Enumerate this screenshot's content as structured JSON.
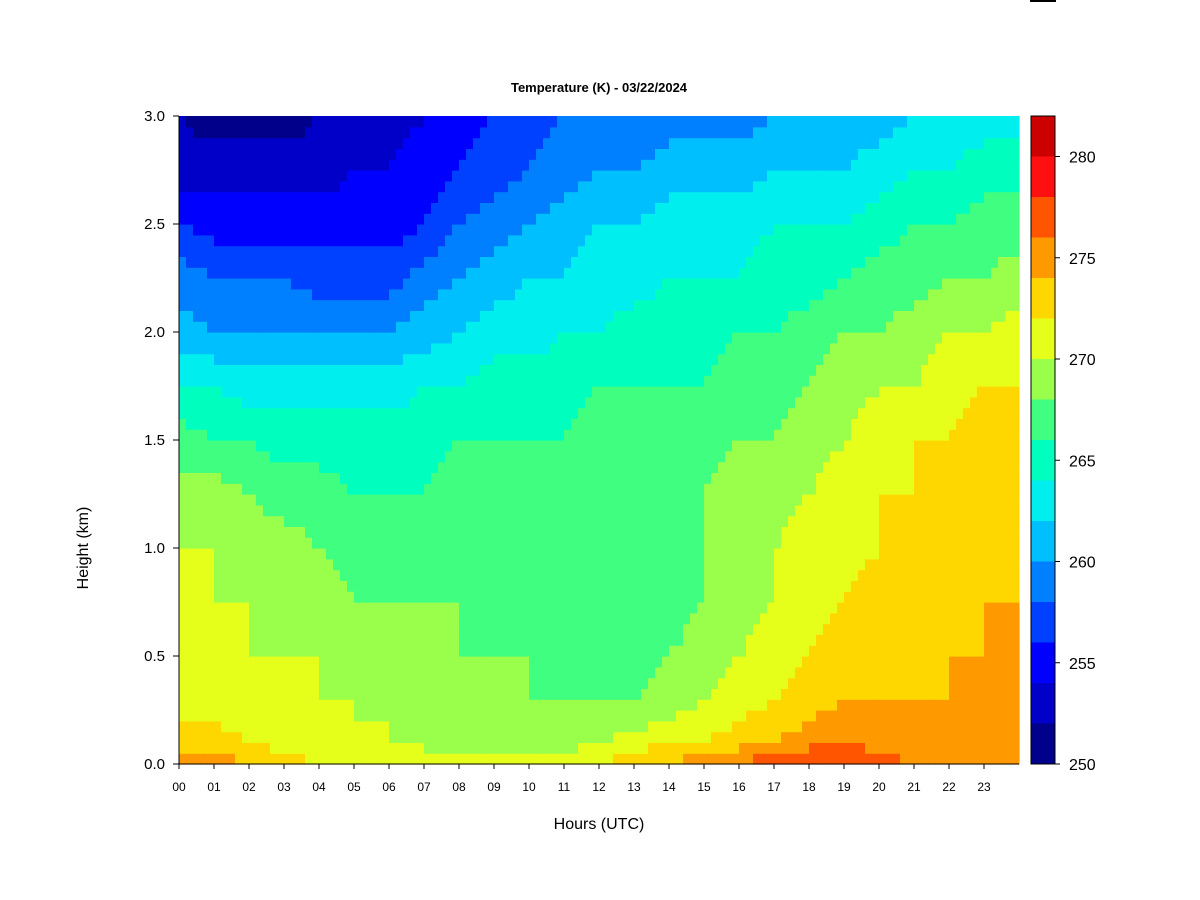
{
  "chart_data": {
    "type": "heatmap",
    "title": "Temperature (K) - 03/22/2024",
    "xlabel": "Hours (UTC)",
    "ylabel": "Height (km)",
    "x_ticks": [
      "00",
      "01",
      "02",
      "03",
      "04",
      "05",
      "06",
      "07",
      "08",
      "09",
      "10",
      "11",
      "12",
      "13",
      "14",
      "15",
      "16",
      "17",
      "18",
      "19",
      "20",
      "21",
      "22",
      "23"
    ],
    "y_ticks": [
      "0.0",
      "0.5",
      "1.0",
      "1.5",
      "2.0",
      "2.5",
      "3.0"
    ],
    "xlim": [
      0,
      24
    ],
    "ylim": [
      0.0,
      3.0
    ],
    "colorbar": {
      "ticks": [
        "250",
        "255",
        "260",
        "265",
        "270",
        "275",
        "280"
      ],
      "range": [
        250,
        282
      ],
      "levels": [
        250,
        252,
        254,
        256,
        258,
        260,
        262,
        264,
        266,
        268,
        270,
        272,
        274,
        276,
        278,
        280,
        282
      ],
      "colors": [
        "#00008B",
        "#0000C8",
        "#0000FF",
        "#0040FF",
        "#0080FF",
        "#00BFFF",
        "#00EEEE",
        "#00FFBF",
        "#40FF80",
        "#9AFF4A",
        "#E6FF1A",
        "#FFD700",
        "#FF9900",
        "#FF5500",
        "#FF1010",
        "#CC0000",
        "#8B0000"
      ]
    },
    "height_km": [
      0.0,
      0.05,
      0.1,
      0.2,
      0.3,
      0.5,
      0.75,
      1.0,
      1.25,
      1.5,
      1.75,
      2.0,
      2.25,
      2.5,
      2.75,
      3.0
    ],
    "hours": [
      0,
      1,
      2,
      3,
      4,
      5,
      6,
      7,
      8,
      9,
      10,
      11,
      12,
      13,
      14,
      15,
      16,
      17,
      18,
      19,
      20,
      21,
      22,
      23,
      24
    ],
    "values": [
      [
        275,
        275,
        274,
        273,
        272,
        271,
        271,
        271,
        270,
        270,
        270,
        271,
        272,
        273,
        274,
        275,
        276,
        277,
        278,
        278,
        277,
        276,
        275,
        275,
        275
      ],
      [
        274,
        274,
        273,
        272,
        271,
        271,
        270,
        270,
        270,
        270,
        270,
        270,
        271,
        272,
        273,
        274,
        275,
        276,
        277,
        277,
        276,
        275,
        275,
        275,
        275
      ],
      [
        273,
        273,
        272,
        271,
        271,
        270,
        270,
        270,
        269,
        269,
        269,
        269,
        270,
        271,
        272,
        272,
        273,
        274,
        275,
        276,
        275,
        274,
        274,
        275,
        275
      ],
      [
        272,
        272,
        271,
        271,
        270,
        270,
        270,
        269,
        269,
        269,
        269,
        268,
        269,
        269,
        270,
        271,
        272,
        273,
        274,
        275,
        274,
        274,
        274,
        274,
        275
      ],
      [
        272,
        271,
        271,
        270,
        270,
        270,
        269,
        269,
        269,
        268,
        268,
        268,
        268,
        268,
        269,
        270,
        271,
        272,
        273,
        274,
        274,
        274,
        274,
        274,
        275
      ],
      [
        271,
        271,
        270,
        270,
        270,
        269,
        269,
        269,
        268,
        268,
        268,
        267,
        267,
        267,
        268,
        269,
        270,
        271,
        272,
        273,
        273,
        273,
        274,
        274,
        274
      ],
      [
        271,
        270,
        270,
        269,
        269,
        268,
        268,
        268,
        268,
        267,
        267,
        267,
        267,
        267,
        267,
        268,
        269,
        270,
        271,
        272,
        273,
        273,
        273,
        274,
        274
      ],
      [
        270,
        270,
        269,
        269,
        268,
        267,
        267,
        267,
        267,
        267,
        267,
        267,
        267,
        267,
        267,
        268,
        269,
        270,
        271,
        271,
        272,
        273,
        273,
        273,
        274
      ],
      [
        269,
        269,
        268,
        267,
        267,
        266,
        266,
        266,
        267,
        267,
        267,
        267,
        267,
        267,
        267,
        268,
        269,
        269,
        270,
        271,
        272,
        272,
        273,
        273,
        273
      ],
      [
        267,
        266,
        266,
        265,
        265,
        265,
        265,
        265,
        266,
        266,
        266,
        266,
        267,
        267,
        267,
        267,
        268,
        268,
        269,
        270,
        271,
        272,
        272,
        273,
        273
      ],
      [
        264,
        264,
        263,
        263,
        263,
        263,
        263,
        264,
        264,
        265,
        265,
        265,
        266,
        266,
        266,
        266,
        267,
        267,
        268,
        269,
        270,
        270,
        271,
        272,
        272
      ],
      [
        261,
        260,
        260,
        260,
        260,
        260,
        260,
        261,
        262,
        263,
        263,
        264,
        264,
        265,
        265,
        265,
        266,
        266,
        267,
        268,
        268,
        269,
        270,
        270,
        271
      ],
      [
        259,
        258,
        258,
        258,
        257,
        257,
        257,
        259,
        260,
        261,
        262,
        262,
        263,
        263,
        264,
        264,
        264,
        265,
        265,
        266,
        267,
        267,
        268,
        268,
        269
      ],
      [
        256,
        255,
        255,
        255,
        255,
        255,
        255,
        256,
        258,
        259,
        260,
        261,
        262,
        262,
        263,
        263,
        263,
        264,
        264,
        264,
        265,
        266,
        266,
        267,
        267
      ],
      [
        253,
        253,
        253,
        253,
        253,
        254,
        254,
        255,
        256,
        257,
        258,
        259,
        260,
        260,
        261,
        261,
        261,
        262,
        262,
        262,
        263,
        264,
        264,
        265,
        265
      ],
      [
        252,
        251,
        251,
        251,
        252,
        253,
        253,
        254,
        255,
        256,
        257,
        258,
        258,
        258,
        259,
        259,
        259,
        260,
        260,
        261,
        261,
        262,
        263,
        263,
        263
      ]
    ]
  }
}
